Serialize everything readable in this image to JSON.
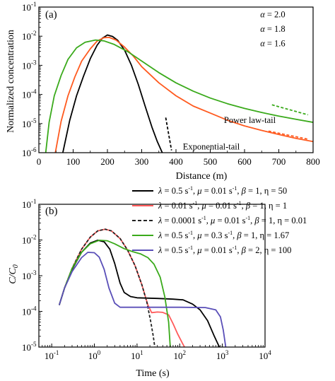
{
  "chart_data": [
    {
      "type": "line",
      "panel_label": "(a)",
      "xlabel": "Distance (m)",
      "ylabel": "Normalized concentration",
      "xlim": [
        0,
        800
      ],
      "ylim": [
        1e-06,
        0.1
      ],
      "yscale": "log",
      "x_ticks": [
        {
          "value": 0,
          "label": "0"
        },
        {
          "value": 100,
          "label": "100"
        },
        {
          "value": 200,
          "label": "200"
        },
        {
          "value": 300,
          "label": "300"
        },
        {
          "value": 400,
          "label": "400"
        },
        {
          "value": 500,
          "label": "500"
        },
        {
          "value": 600,
          "label": "600"
        },
        {
          "value": 700,
          "label": "700"
        },
        {
          "value": 800,
          "label": "800"
        }
      ],
      "y_ticks": [
        {
          "value": 1e-06,
          "base": "10",
          "exp": "-6"
        },
        {
          "value": 1e-05,
          "base": "10",
          "exp": "-5"
        },
        {
          "value": 0.0001,
          "base": "10",
          "exp": "-4"
        },
        {
          "value": 0.001,
          "base": "10",
          "exp": "-3"
        },
        {
          "value": 0.01,
          "base": "10",
          "exp": "-2"
        },
        {
          "value": 0.1,
          "base": "10",
          "exp": "-1"
        }
      ],
      "series": [
        {
          "color": "#000000",
          "dash": false,
          "points": [
            [
              70,
              1e-06
            ],
            [
              90,
              1.3e-05
            ],
            [
              110,
              9e-05
            ],
            [
              130,
              0.00042
            ],
            [
              150,
              0.0017
            ],
            [
              170,
              0.0049
            ],
            [
              185,
              0.0085
            ],
            [
              200,
              0.011
            ],
            [
              215,
              0.0098
            ],
            [
              230,
              0.0072
            ],
            [
              250,
              0.0033
            ],
            [
              270,
              0.001
            ],
            [
              290,
              0.00022
            ],
            [
              310,
              4e-05
            ],
            [
              330,
              7.5e-06
            ],
            [
              345,
              2.5e-06
            ],
            [
              360,
              1e-06
            ]
          ]
        },
        {
          "color": "#ff5a1f",
          "dash": false,
          "points": [
            [
              48,
              1e-06
            ],
            [
              65,
              1.2e-05
            ],
            [
              85,
              9e-05
            ],
            [
              105,
              0.0004
            ],
            [
              125,
              0.0014
            ],
            [
              150,
              0.0037
            ],
            [
              170,
              0.0068
            ],
            [
              190,
              0.0089
            ],
            [
              205,
              0.0091
            ],
            [
              225,
              0.0074
            ],
            [
              250,
              0.0042
            ],
            [
              275,
              0.0021
            ],
            [
              300,
              0.0009
            ],
            [
              350,
              0.00025
            ],
            [
              400,
              9e-05
            ],
            [
              450,
              4e-05
            ],
            [
              500,
              2.3e-05
            ],
            [
              550,
              1.3e-05
            ],
            [
              600,
              8.3e-06
            ],
            [
              650,
              5.8e-06
            ],
            [
              700,
              4.2e-06
            ],
            [
              750,
              3.1e-06
            ],
            [
              800,
              2.4e-06
            ]
          ]
        },
        {
          "color": "#3aaa1b",
          "dash": false,
          "points": [
            [
              20,
              1e-06
            ],
            [
              30,
              1.1e-05
            ],
            [
              45,
              9e-05
            ],
            [
              65,
              0.00045
            ],
            [
              85,
              0.0016
            ],
            [
              110,
              0.004
            ],
            [
              135,
              0.0062
            ],
            [
              165,
              0.0074
            ],
            [
              190,
              0.0069
            ],
            [
              220,
              0.0052
            ],
            [
              260,
              0.0029
            ],
            [
              300,
              0.0014
            ],
            [
              350,
              0.00056
            ],
            [
              400,
              0.00025
            ],
            [
              450,
              0.00013
            ],
            [
              500,
              7.5e-05
            ],
            [
              550,
              4.8e-05
            ],
            [
              600,
              3.3e-05
            ],
            [
              650,
              2.4e-05
            ],
            [
              700,
              1.8e-05
            ],
            [
              750,
              1.4e-05
            ],
            [
              800,
              1.1e-05
            ]
          ]
        },
        {
          "color": "#000000",
          "dash": true,
          "points": [
            [
              370,
              1.6e-05
            ],
            [
              387,
              1.2e-06
            ]
          ]
        },
        {
          "color": "#ff5a1f",
          "dash": true,
          "points": [
            [
              670,
              5.5e-06
            ],
            [
              785,
              2.9e-06
            ]
          ]
        },
        {
          "color": "#3aaa1b",
          "dash": true,
          "points": [
            [
              680,
              4.4e-05
            ],
            [
              785,
              2e-05
            ]
          ]
        }
      ],
      "annotations": [
        {
          "symbol": "α",
          "text": " = 2.0",
          "at": [
            720,
            0.045
          ]
        },
        {
          "symbol": "α",
          "text": " = 1.8",
          "at": [
            720,
            0.014
          ]
        },
        {
          "symbol": "α",
          "text": " = 1.6",
          "at": [
            720,
            0.0045
          ]
        },
        {
          "text": "Power law-tail",
          "at": [
            540,
            1.05e-05
          ]
        },
        {
          "text": "Exponential-tail",
          "at": [
            420,
            1.3e-06
          ]
        }
      ]
    },
    {
      "type": "line",
      "panel_label": "(b)",
      "xlabel": "Time (s)",
      "ylabel": "C/C0",
      "ylabel_main": "C/C",
      "ylabel_sub": "0",
      "xscale": "log",
      "yscale": "log",
      "xlim": [
        0.05,
        10000
      ],
      "ylim": [
        1e-05,
        0.1
      ],
      "x_ticks": [
        {
          "value": 0.1,
          "base": "10",
          "exp": "-1"
        },
        {
          "value": 1,
          "base": "10",
          "exp": "0"
        },
        {
          "value": 10,
          "base": "10",
          "exp": "1"
        },
        {
          "value": 100,
          "base": "10",
          "exp": "2"
        },
        {
          "value": 1000,
          "base": "10",
          "exp": "3"
        },
        {
          "value": 10000,
          "base": "10",
          "exp": "4"
        }
      ],
      "y_ticks": [
        {
          "value": 1e-05,
          "base": "10",
          "exp": "-5"
        },
        {
          "value": 0.0001,
          "base": "10",
          "exp": "-4"
        },
        {
          "value": 0.001,
          "base": "10",
          "exp": "-3"
        },
        {
          "value": 0.01,
          "base": "10",
          "exp": "-2"
        },
        {
          "value": 0.1,
          "base": "10",
          "exp": "-1"
        }
      ],
      "legend": [
        {
          "color": "#000000",
          "dash": false,
          "lambda": "0.5",
          "mu": "0.01",
          "beta": "1",
          "eta": "50",
          "eta_sep": ",  "
        },
        {
          "color": "#ff5a5a",
          "dash": false,
          "lambda": "0.01",
          "mu": "0.01",
          "beta": "1",
          "eta": "1",
          "eta_sep": ", "
        },
        {
          "color": "#222222",
          "dash": true,
          "lambda": "0.0001",
          "mu": "0.01",
          "beta": "1",
          "eta": "0.01",
          "eta_sep": ", "
        },
        {
          "color": "#3aaa1b",
          "dash": false,
          "lambda": "0.5",
          "mu": "0.3",
          "beta": "1",
          "eta": "1.67",
          "eta_sep": ", "
        },
        {
          "color": "#5a4fb8",
          "dash": false,
          "lambda": "0.5",
          "mu": "0.01",
          "beta": "2",
          "eta": "100",
          "eta_sep": ", "
        }
      ],
      "legend_unit": "s",
      "legend_unit_exp": "-1",
      "series": [
        {
          "color": "#000000",
          "dash": false,
          "points": [
            [
              0.15,
              0.00015
            ],
            [
              0.2,
              0.00045
            ],
            [
              0.3,
              0.0015
            ],
            [
              0.5,
              0.0045
            ],
            [
              0.8,
              0.0082
            ],
            [
              1.2,
              0.0098
            ],
            [
              1.7,
              0.0089
            ],
            [
              2.3,
              0.0055
            ],
            [
              3,
              0.0022
            ],
            [
              4,
              0.00062
            ],
            [
              5,
              0.00034
            ],
            [
              7,
              0.00026
            ],
            [
              10,
              0.00024
            ],
            [
              30,
              0.00023
            ],
            [
              70,
              0.00022
            ],
            [
              120,
              0.00021
            ],
            [
              200,
              0.00016
            ],
            [
              300,
              0.00011
            ],
            [
              450,
              5.5e-05
            ],
            [
              650,
              2e-05
            ],
            [
              850,
              1e-05
            ]
          ]
        },
        {
          "color": "#ff5a5a",
          "dash": false,
          "points": [
            [
              0.15,
              0.00015
            ],
            [
              0.2,
              0.00045
            ],
            [
              0.3,
              0.0016
            ],
            [
              0.5,
              0.0055
            ],
            [
              0.8,
              0.012
            ],
            [
              1.2,
              0.018
            ],
            [
              1.8,
              0.02
            ],
            [
              2.5,
              0.018
            ],
            [
              4,
              0.011
            ],
            [
              6,
              0.0052
            ],
            [
              9,
              0.0019
            ],
            [
              13,
              0.00055
            ],
            [
              18,
              0.00015
            ],
            [
              22,
              9.2e-05
            ],
            [
              30,
              9.6e-05
            ],
            [
              40,
              9.4e-05
            ],
            [
              55,
              8e-05
            ],
            [
              70,
              4.5e-05
            ],
            [
              90,
              2.3e-05
            ],
            [
              115,
              1.3e-05
            ],
            [
              130,
              1e-05
            ]
          ]
        },
        {
          "color": "#222222",
          "dash": true,
          "points": [
            [
              0.15,
              0.00015
            ],
            [
              0.2,
              0.00045
            ],
            [
              0.3,
              0.0016
            ],
            [
              0.5,
              0.0055
            ],
            [
              0.8,
              0.012
            ],
            [
              1.2,
              0.018
            ],
            [
              1.8,
              0.02
            ],
            [
              2.5,
              0.018
            ],
            [
              4,
              0.011
            ],
            [
              6,
              0.0052
            ],
            [
              9,
              0.0019
            ],
            [
              13,
              0.00055
            ],
            [
              17,
              0.00018
            ],
            [
              21,
              5e-05
            ],
            [
              24,
              2e-05
            ],
            [
              26,
              1e-05
            ]
          ]
        },
        {
          "color": "#3aaa1b",
          "dash": false,
          "points": [
            [
              0.15,
              0.00015
            ],
            [
              0.2,
              0.00045
            ],
            [
              0.3,
              0.0016
            ],
            [
              0.5,
              0.0045
            ],
            [
              0.8,
              0.0078
            ],
            [
              1.3,
              0.0098
            ],
            [
              2,
              0.0095
            ],
            [
              3,
              0.0078
            ],
            [
              5,
              0.0057
            ],
            [
              8,
              0.0047
            ],
            [
              12,
              0.0041
            ],
            [
              18,
              0.0032
            ],
            [
              25,
              0.0021
            ],
            [
              35,
              0.0009
            ],
            [
              45,
              0.00025
            ],
            [
              55,
              5e-05
            ],
            [
              60,
              1e-05
            ]
          ]
        },
        {
          "color": "#5a4fb8",
          "dash": false,
          "points": [
            [
              0.15,
              0.00015
            ],
            [
              0.2,
              0.00045
            ],
            [
              0.3,
              0.0013
            ],
            [
              0.5,
              0.0032
            ],
            [
              0.7,
              0.0045
            ],
            [
              1,
              0.0044
            ],
            [
              1.3,
              0.0033
            ],
            [
              1.7,
              0.0015
            ],
            [
              2.2,
              0.00045
            ],
            [
              3,
              0.00017
            ],
            [
              4,
              0.00013
            ],
            [
              10,
              0.00013
            ],
            [
              100,
              0.00013
            ],
            [
              400,
              0.000128
            ],
            [
              700,
              0.00011
            ],
            [
              900,
              7e-05
            ],
            [
              1050,
              3e-05
            ],
            [
              1200,
              1e-05
            ]
          ]
        }
      ]
    }
  ]
}
